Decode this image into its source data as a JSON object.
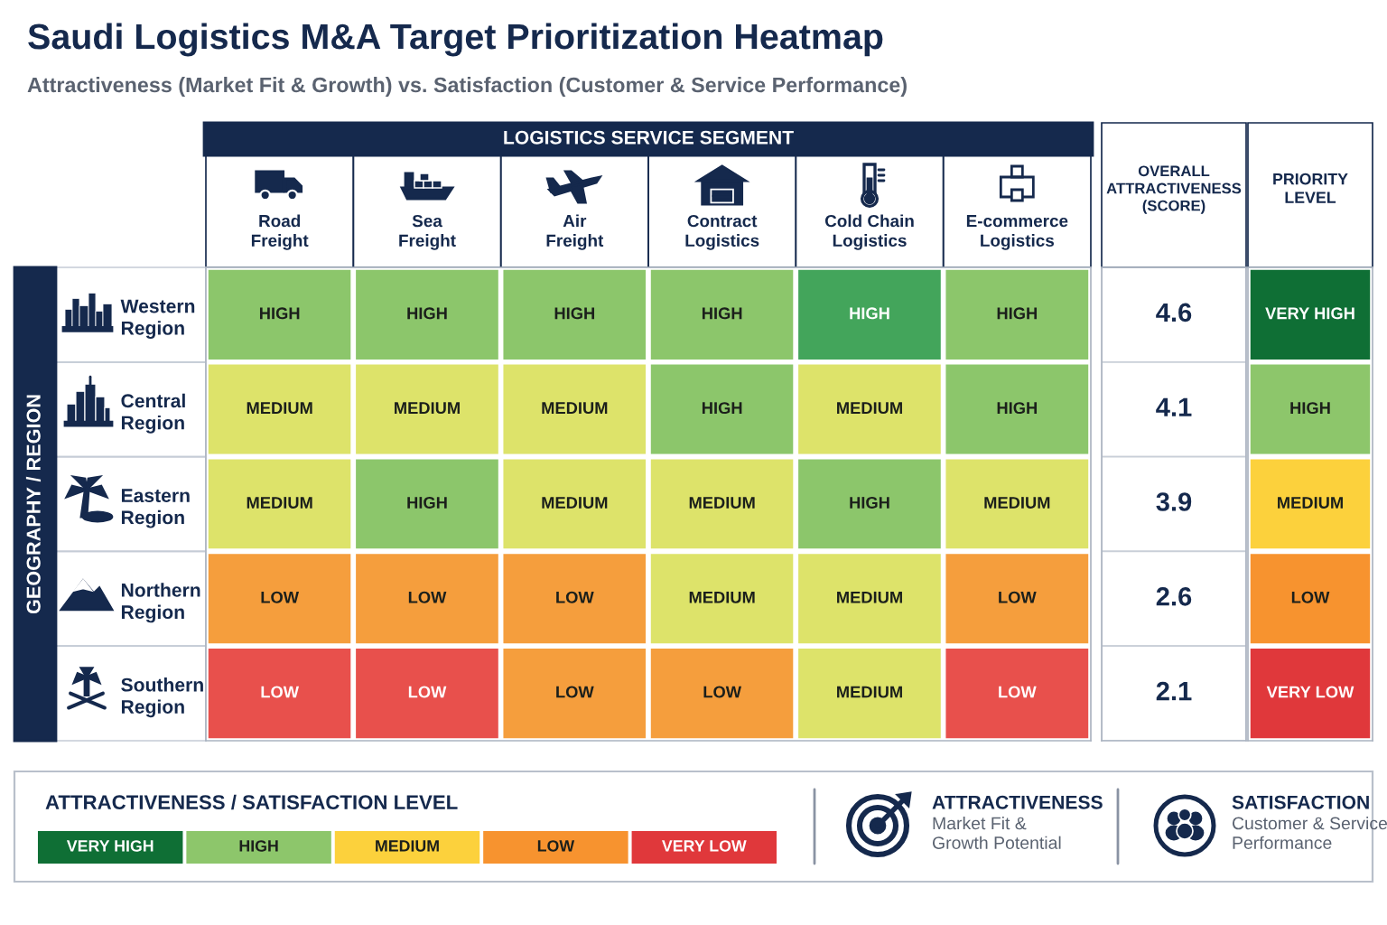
{
  "chart_data": [
    {
      "type": "other",
      "title": "Saudi Logistics M&A Target Prioritization Heatmap",
      "subtitle": "Attractiveness (Market Fit & Growth) vs. Satisfaction (Customer & Service Performance)",
      "xlabel": "LOGISTICS SERVICE SEGMENT",
      "ylabel": "GEOGRAPHY / REGION",
      "categories": [
        "Road Freight",
        "Sea Freight",
        "Air Freight",
        "Contract Logistics",
        "Cold Chain Logistics",
        "E-commerce Logistics"
      ],
      "y_categories": [
        "Western Region",
        "Central Region",
        "Eastern Region",
        "Northern Region",
        "Southern Region"
      ],
      "cells": [
        [
          "HIGH",
          "HIGH",
          "HIGH",
          "HIGH",
          "HIGH",
          "HIGH"
        ],
        [
          "MEDIUM",
          "MEDIUM",
          "MEDIUM",
          "HIGH",
          "MEDIUM",
          "HIGH"
        ],
        [
          "MEDIUM",
          "HIGH",
          "MEDIUM",
          "MEDIUM",
          "HIGH",
          "MEDIUM"
        ],
        [
          "LOW",
          "LOW",
          "LOW",
          "MEDIUM",
          "MEDIUM",
          "LOW"
        ],
        [
          "LOW",
          "LOW",
          "LOW",
          "LOW",
          "MEDIUM",
          "LOW"
        ]
      ],
      "colors": [
        [
          "#8cc66b",
          "#8cc66b",
          "#8cc66b",
          "#8cc66b",
          "#43a55b",
          "#8cc66b"
        ],
        [
          "#dde36a",
          "#dde36a",
          "#dde36a",
          "#8cc66b",
          "#dde36a",
          "#8cc66b"
        ],
        [
          "#dde36a",
          "#8cc66b",
          "#dde36a",
          "#dde36a",
          "#8cc66b",
          "#dde36a"
        ],
        [
          "#f59e3d",
          "#f59e3d",
          "#f59e3d",
          "#dde36a",
          "#dde36a",
          "#f59e3d"
        ],
        [
          "#e8504c",
          "#e8504c",
          "#f59e3d",
          "#f59e3d",
          "#dde36a",
          "#e8504c"
        ]
      ]
    },
    {
      "type": "heatmap",
      "categories": [
        "OVERALL ATTRACTIVENESS (SCORE)"
      ],
      "y_categories": [
        null,
        null,
        null,
        null,
        null
      ],
      "cells": [
        [
          4.6
        ],
        [
          4.1
        ],
        [
          3.9
        ],
        [
          2.6
        ],
        [
          2.1
        ]
      ],
      "data_labels": true
    },
    {
      "type": "other",
      "categories": [
        "PRIORITY LEVEL"
      ],
      "cells": [
        [
          "VERY HIGH"
        ],
        [
          "HIGH"
        ],
        [
          "MEDIUM"
        ],
        [
          "LOW"
        ],
        [
          "VERY LOW"
        ]
      ],
      "colors": [
        [
          "#0f6f35"
        ],
        [
          "#8dc66b"
        ],
        [
          "#fcd13c"
        ],
        [
          "#f7932f"
        ],
        [
          "#e0383b"
        ]
      ]
    },
    {
      "type": "other",
      "legend_title": "ATTRACTIVENESS / SATISFACTION LEVEL",
      "categories": [
        "VERY HIGH",
        "HIGH",
        "MEDIUM",
        "LOW",
        "VERY LOW"
      ],
      "colors": [
        "#0f6f35",
        "#8dc66b",
        "#fcd13c",
        "#f7932f",
        "#e0383b"
      ],
      "annotations": [
        "ATTRACTIVENESS",
        "Market Fit & Growth Potential",
        "SATISFACTION",
        "Customer & Service Performance"
      ]
    }
  ]
}
